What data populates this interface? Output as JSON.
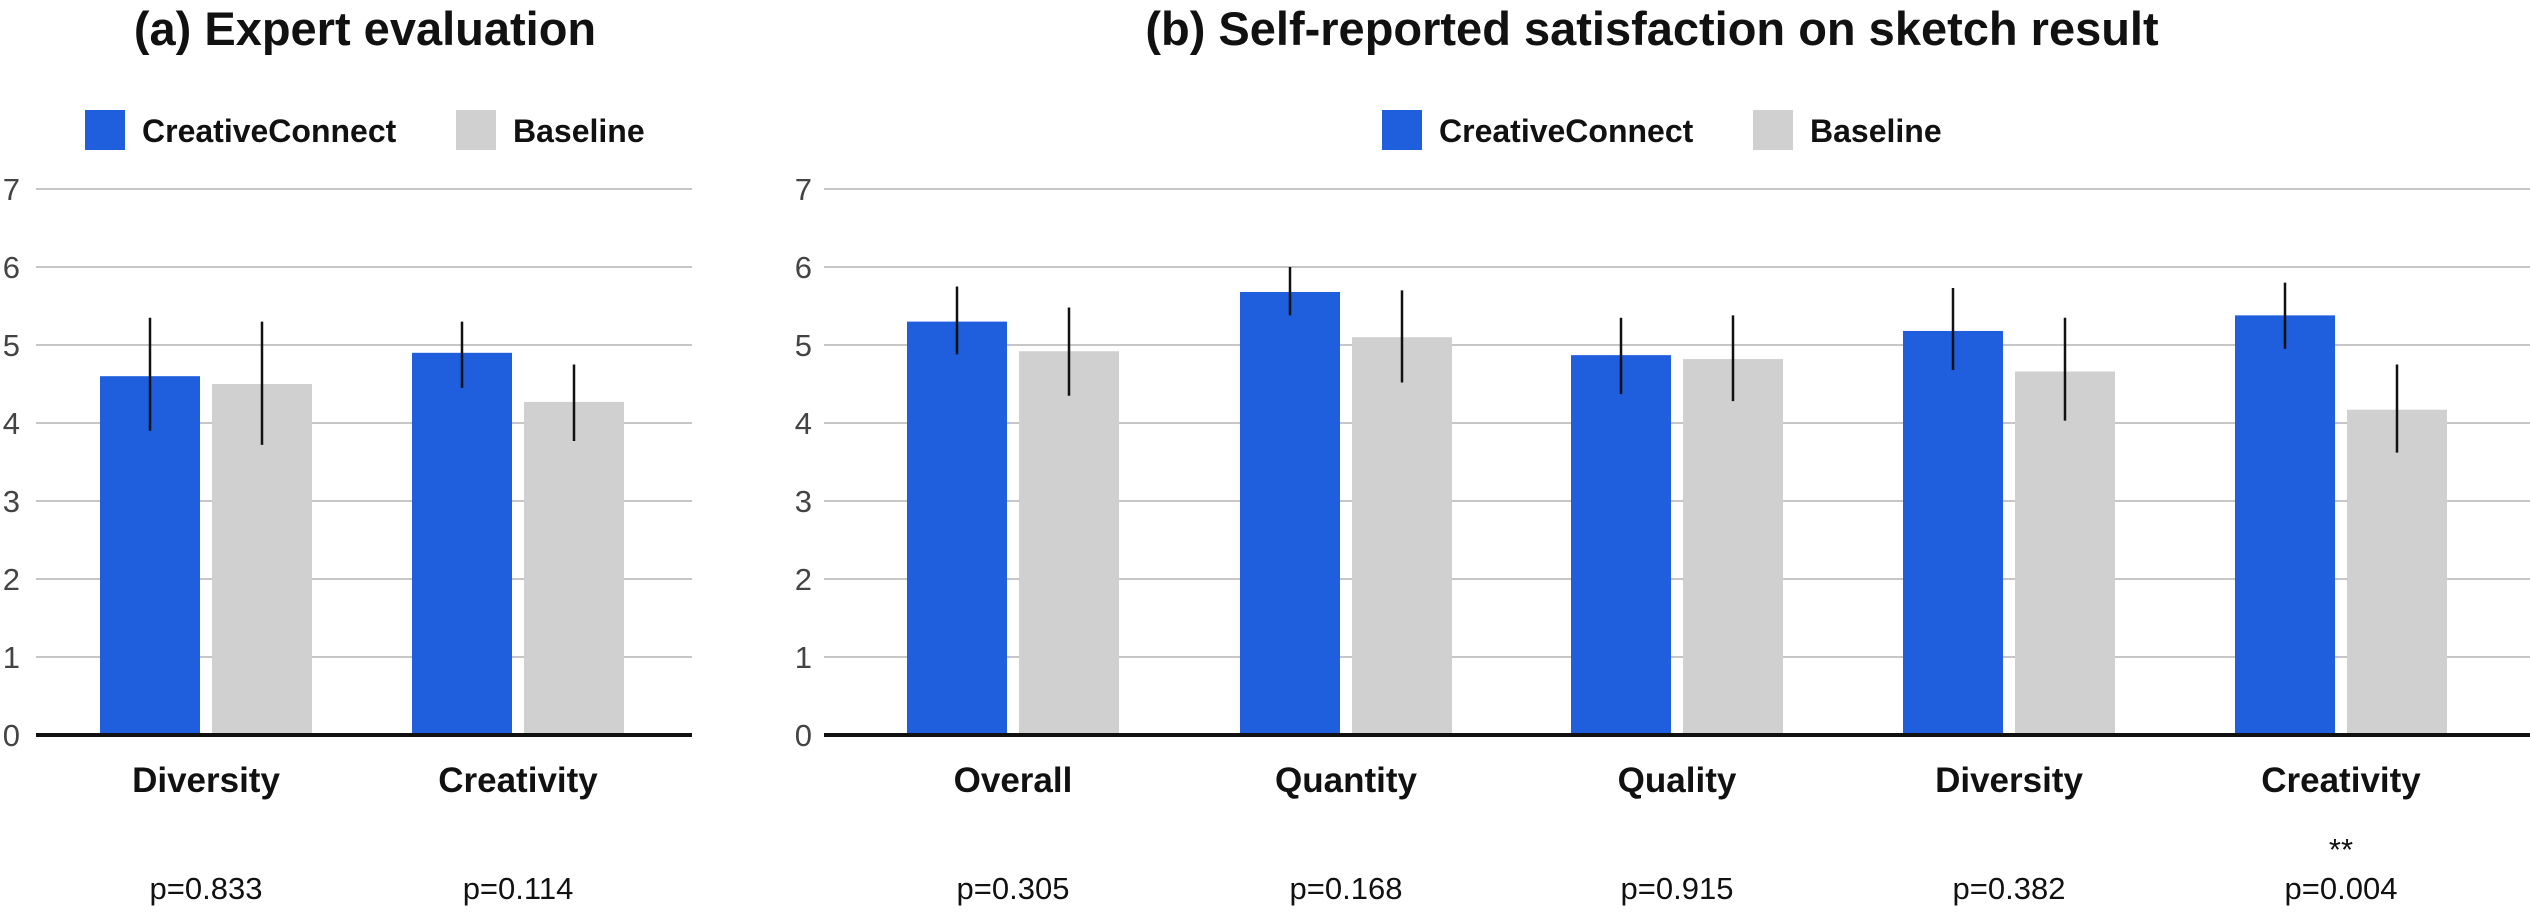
{
  "chart_data": [
    {
      "type": "bar",
      "title": "(a) Expert evaluation",
      "legend": [
        {
          "name": "CreativeConnect",
          "color": "#1f5fde"
        },
        {
          "name": "Baseline",
          "color": "#d0d0d0"
        }
      ],
      "categories": [
        "Diversity",
        "Creativity"
      ],
      "series": [
        {
          "name": "CreativeConnect",
          "color": "#1f5fde",
          "values": [
            4.6,
            4.9
          ],
          "err_low": [
            3.9,
            4.45
          ],
          "err_high": [
            5.35,
            5.3
          ]
        },
        {
          "name": "Baseline",
          "color": "#d0d0d0",
          "values": [
            4.5,
            4.27
          ],
          "err_low": [
            3.72,
            3.77
          ],
          "err_high": [
            5.3,
            4.75
          ]
        }
      ],
      "pvalues": [
        "p=0.833",
        "p=0.114"
      ],
      "significance": [
        "",
        ""
      ],
      "yticks": [
        "0",
        "1",
        "2",
        "3",
        "4",
        "5",
        "6",
        "7"
      ],
      "ylim": [
        0,
        7
      ],
      "legend_position": "top-center",
      "grid": true
    },
    {
      "type": "bar",
      "title": "(b) Self-reported satisfaction on sketch result",
      "legend": [
        {
          "name": "CreativeConnect",
          "color": "#1f5fde"
        },
        {
          "name": "Baseline",
          "color": "#d0d0d0"
        }
      ],
      "categories": [
        "Overall",
        "Quantity",
        "Quality",
        "Diversity",
        "Creativity"
      ],
      "series": [
        {
          "name": "CreativeConnect",
          "color": "#1f5fde",
          "values": [
            5.3,
            5.68,
            4.87,
            5.18,
            5.38
          ],
          "err_low": [
            4.88,
            5.38,
            4.37,
            4.68,
            4.95
          ],
          "err_high": [
            5.75,
            6.0,
            5.35,
            5.73,
            5.8
          ]
        },
        {
          "name": "Baseline",
          "color": "#d0d0d0",
          "values": [
            4.92,
            5.1,
            4.82,
            4.66,
            4.17
          ],
          "err_low": [
            4.35,
            4.52,
            4.28,
            4.03,
            3.62
          ],
          "err_high": [
            5.48,
            5.7,
            5.38,
            5.35,
            4.75
          ]
        }
      ],
      "pvalues": [
        "p=0.305",
        "p=0.168",
        "p=0.915",
        "p=0.382",
        "p=0.004"
      ],
      "significance": [
        "",
        "",
        "",
        "",
        "**"
      ],
      "yticks": [
        "0",
        "1",
        "2",
        "3",
        "4",
        "5",
        "6",
        "7"
      ],
      "ylim": [
        0,
        7
      ],
      "legend_position": "top-center",
      "grid": true
    }
  ]
}
